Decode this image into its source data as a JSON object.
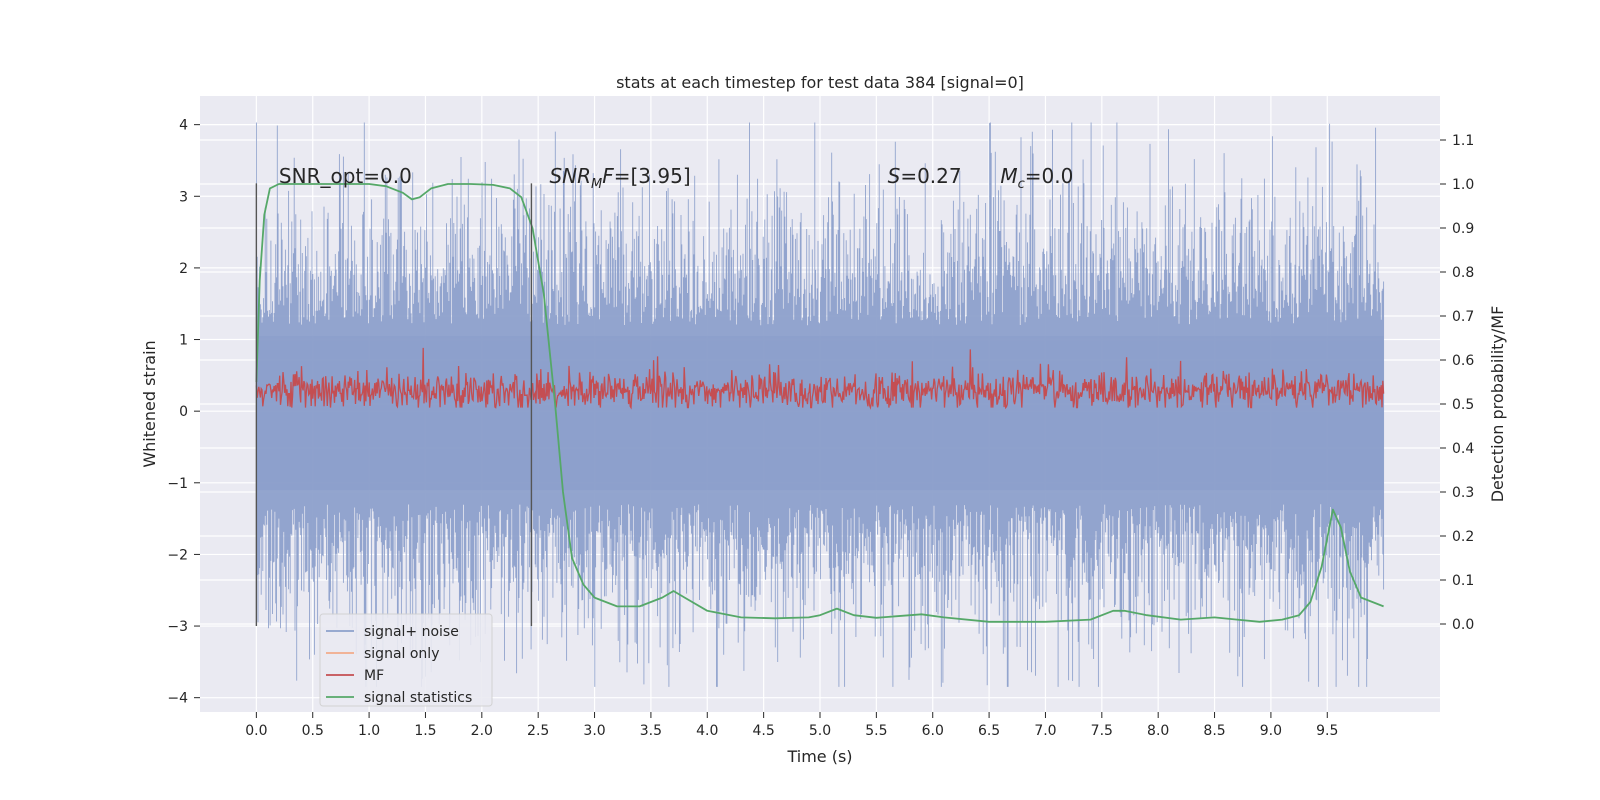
{
  "chart_data": {
    "type": "line",
    "title": "stats at each timestep for test data 384 [signal=0]",
    "xlabel": "Time (s)",
    "ylabel": "Whitened strain",
    "ylabel_right": "Detection probability/MF",
    "xlim": [
      -0.5,
      10.5
    ],
    "ylim": [
      -4.2,
      4.4
    ],
    "ylim_right": [
      -0.2,
      1.2
    ],
    "x_ticks": [
      "0.0",
      "0.5",
      "1.0",
      "1.5",
      "2.0",
      "2.5",
      "3.0",
      "3.5",
      "4.0",
      "4.5",
      "5.0",
      "5.5",
      "6.0",
      "6.5",
      "7.0",
      "7.5",
      "8.0",
      "8.5",
      "9.0",
      "9.5"
    ],
    "y_ticks": [
      "−4",
      "−3",
      "−2",
      "−1",
      "0",
      "1",
      "2",
      "3",
      "4"
    ],
    "y_ticks_right": [
      "0.0",
      "0.1",
      "0.2",
      "0.3",
      "0.4",
      "0.5",
      "0.6",
      "0.7",
      "0.8",
      "0.9",
      "1.0",
      "1.1"
    ],
    "grid": true,
    "legend_position": "bottom-left",
    "annotations": [
      {
        "x": 0.2,
        "y": 3.2,
        "mode": "plain",
        "text": "SNR_opt=0.0"
      },
      {
        "x": 2.6,
        "y": 3.2,
        "mode": "snrmf",
        "base": "SNR",
        "sub": "M",
        "rest": "F=[3.95]"
      },
      {
        "x": 5.6,
        "y": 3.2,
        "mode": "italic",
        "base": "S",
        "rest": "=0.27"
      },
      {
        "x": 6.6,
        "y": 3.2,
        "mode": "sub",
        "base": "M",
        "sub": "c",
        "rest": "=0.0"
      }
    ],
    "window_markers": [
      0.0,
      2.44
    ],
    "window_range": [
      -3.0,
      3.18
    ],
    "series": [
      {
        "name": "signal+ noise",
        "color": "#8da0cb",
        "axis": "left",
        "t_range": [
          0.0,
          10.0
        ],
        "envelope_upper": 2.4,
        "envelope_lower": -2.4,
        "peak_max": 4.03,
        "peak_min": -3.85
      },
      {
        "name": "signal only",
        "color": "#f2ab8a",
        "axis": "left",
        "values": []
      },
      {
        "name": "MF",
        "color": "#c44e52",
        "axis": "left",
        "t_range": [
          0.0,
          10.0
        ],
        "baseline": 0.05,
        "typical_max": 0.7,
        "peak_max": 1.0
      },
      {
        "name": "signal statistics",
        "color": "#55a868",
        "axis": "right",
        "x": [
          0.0,
          0.03,
          0.07,
          0.12,
          0.2,
          0.3,
          0.5,
          0.8,
          1.0,
          1.15,
          1.3,
          1.38,
          1.45,
          1.55,
          1.7,
          1.9,
          2.1,
          2.25,
          2.35,
          2.45,
          2.55,
          2.65,
          2.72,
          2.8,
          2.9,
          3.0,
          3.2,
          3.4,
          3.6,
          3.7,
          3.8,
          4.0,
          4.3,
          4.6,
          4.9,
          5.0,
          5.15,
          5.3,
          5.5,
          5.8,
          5.9,
          6.1,
          6.5,
          7.0,
          7.4,
          7.6,
          7.7,
          7.9,
          8.2,
          8.5,
          8.7,
          8.9,
          9.1,
          9.25,
          9.35,
          9.45,
          9.55,
          9.62,
          9.7,
          9.8,
          9.9,
          10.0
        ],
        "y": [
          0.55,
          0.78,
          0.93,
          0.99,
          1.0,
          1.0,
          1.0,
          1.0,
          1.0,
          0.995,
          0.98,
          0.965,
          0.97,
          0.99,
          1.0,
          1.0,
          0.998,
          0.99,
          0.97,
          0.9,
          0.75,
          0.5,
          0.3,
          0.15,
          0.09,
          0.06,
          0.04,
          0.04,
          0.06,
          0.075,
          0.06,
          0.03,
          0.015,
          0.013,
          0.015,
          0.02,
          0.035,
          0.02,
          0.014,
          0.02,
          0.022,
          0.015,
          0.005,
          0.005,
          0.01,
          0.03,
          0.03,
          0.02,
          0.01,
          0.015,
          0.01,
          0.005,
          0.01,
          0.02,
          0.05,
          0.13,
          0.26,
          0.22,
          0.12,
          0.06,
          0.05,
          0.04
        ]
      }
    ]
  }
}
